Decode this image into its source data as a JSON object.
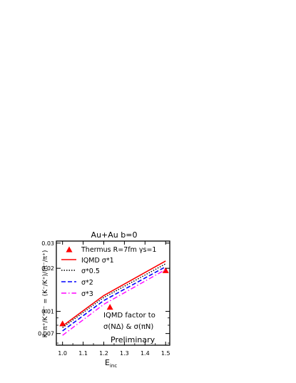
{
  "chart_data": {
    "type": "line",
    "title": "Au+Au  b=0",
    "xlabel": "E",
    "xlabel_sub": "inc",
    "ylabel": "K⁻π⁺/K⁺π⁻ = (K⁻/K⁺)/(π⁻/π⁺)",
    "xlim": [
      0.97,
      1.52
    ],
    "ylim": [
      0.0058,
      0.031
    ],
    "yscale": "log",
    "x_ticks": [
      1.0,
      1.1,
      1.2,
      1.3,
      1.4,
      1.5
    ],
    "x_tick_labels": [
      "1.0",
      "1.1",
      "1.2",
      "1.3",
      "1.4",
      "1.5"
    ],
    "y_ticks": [
      0.007,
      0.01,
      0.02,
      0.03
    ],
    "y_tick_labels": [
      "0.007",
      "0.01",
      "0.02",
      "0.03"
    ],
    "series": [
      {
        "name": "Thermus R=7fm  γs=1",
        "style": "markers",
        "color": "#ff0000",
        "x": [
          1.0,
          1.23,
          1.5
        ],
        "y": [
          0.0082,
          0.0107,
          0.0193
        ]
      },
      {
        "name": "IQMD  σ*1",
        "style": "solid",
        "color": "#ff0000",
        "x": [
          1.0,
          1.2,
          1.5
        ],
        "y": [
          0.0079,
          0.0129,
          0.0225
        ]
      },
      {
        "name": "σ*0.5",
        "style": "dotted",
        "color": "#000000",
        "x": [
          1.0,
          1.2,
          1.5
        ],
        "y": [
          0.0077,
          0.0125,
          0.0215
        ]
      },
      {
        "name": "σ*2",
        "style": "dashed",
        "color": "#0000ff",
        "x": [
          1.0,
          1.2,
          1.5
        ],
        "y": [
          0.0073,
          0.0119,
          0.0205
        ]
      },
      {
        "name": "σ*3",
        "style": "dashdot",
        "color": "#ff00ff",
        "x": [
          1.0,
          1.2,
          1.5
        ],
        "y": [
          0.0068,
          0.0112,
          0.0196
        ]
      }
    ],
    "annotations": [
      "IQMD factor to",
      "σ(NΔ) & σ(πN)",
      "Preliminary"
    ],
    "grid": false
  }
}
